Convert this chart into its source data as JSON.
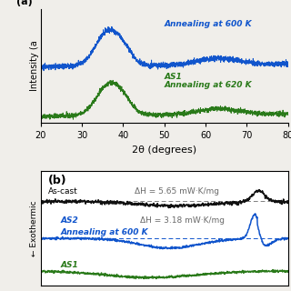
{
  "panel_a": {
    "xlabel": "2θ (degrees)",
    "ylabel": "Intensity (a",
    "blue_label": "Annealing at 600 K",
    "green_label1": "AS1",
    "green_label2": "Annealing at 620 K",
    "blue_color": "#1155cc",
    "green_color": "#2a7a1a"
  },
  "panel_b": {
    "ylabel": "← Exothermic",
    "black_label": "As-cast",
    "blue_label1": "AS2",
    "blue_label2": "Annealing at 600 K",
    "green_label": "AS1",
    "black_dH": "ΔH = 5.65 mW·K/mg",
    "blue_dH": "ΔH = 3.18 mW·K/mg",
    "black_color": "#111111",
    "blue_color": "#1155cc",
    "green_color": "#2a7a1a"
  },
  "bg_color_a": "#f0eeea",
  "bg_color_b": "#ffffff"
}
